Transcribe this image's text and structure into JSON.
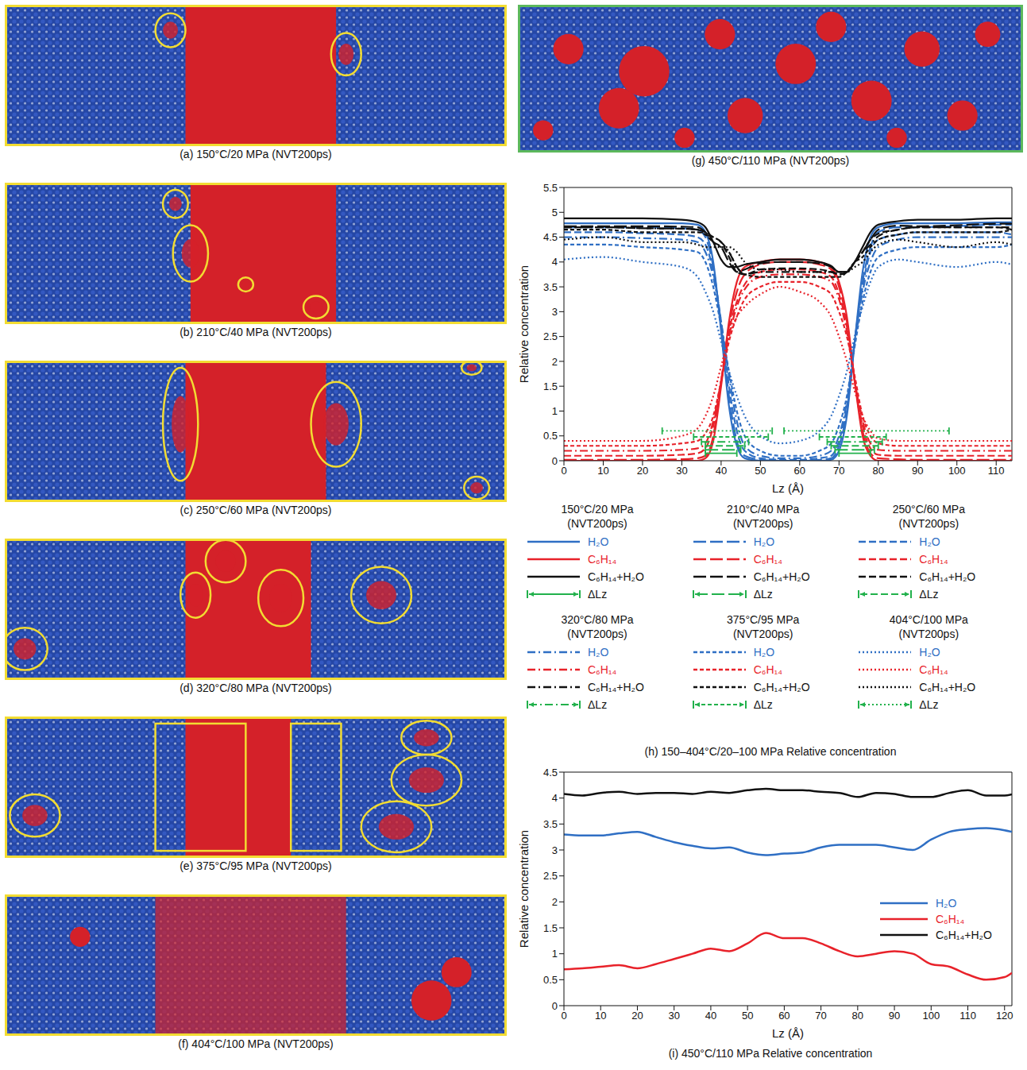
{
  "snapshots": [
    {
      "caption": "(a) 150°C/20 MPa (NVT200ps)"
    },
    {
      "caption": "(b) 210°C/40 MPa (NVT200ps)"
    },
    {
      "caption": "(c) 250°C/60 MPa (NVT200ps)"
    },
    {
      "caption": "(d) 320°C/80 MPa (NVT200ps)"
    },
    {
      "caption": "(e) 375°C/95 MPa (NVT200ps)"
    },
    {
      "caption": "(f) 404°C/100 MPa (NVT200ps)"
    },
    {
      "caption": "(g) 450°C/110 MPa (NVT200ps)"
    }
  ],
  "chart_data": [
    {
      "type": "line",
      "caption": "(h) 150–404°C/20–100 MPa Relative concentration",
      "x_label": "Lz (Å)",
      "y_label": "Relative concentration",
      "legend": "below",
      "xlim": [
        0,
        114
      ],
      "xticks": [
        0,
        10,
        20,
        30,
        40,
        50,
        60,
        70,
        80,
        90,
        100,
        110
      ],
      "ylim": [
        0,
        5.5
      ],
      "yticks": [
        0,
        0.5,
        1,
        1.5,
        2,
        2.5,
        3,
        3.5,
        4,
        4.5,
        5,
        5.5
      ],
      "x": [
        0,
        10,
        20,
        30,
        34,
        36,
        38,
        40,
        42,
        44,
        46,
        50,
        55,
        60,
        65,
        68,
        70,
        72,
        74,
        76,
        78,
        80,
        85,
        90,
        100,
        110,
        114
      ],
      "groups": [
        {
          "name": "150°C/20 MPa",
          "subtitle": "(NVT200ps)",
          "line_style": "solid",
          "series": [
            {
              "name": "H₂O",
              "color": "#2f6fc4",
              "values": [
                4.78,
                4.78,
                4.78,
                4.78,
                4.75,
                4.6,
                4.0,
                2.6,
                1.1,
                0.3,
                0.05,
                0,
                0,
                0,
                0,
                0.02,
                0.2,
                0.9,
                2.4,
                3.8,
                4.5,
                4.7,
                4.78,
                4.78,
                4.78,
                4.8,
                4.8
              ]
            },
            {
              "name": "C₆H₁₄",
              "color": "#e8222a",
              "values": [
                0,
                0,
                0,
                0,
                0,
                0.05,
                0.4,
                1.5,
                2.8,
                3.6,
                3.9,
                4.0,
                4.05,
                4.05,
                4.0,
                3.9,
                3.6,
                2.9,
                1.6,
                0.5,
                0.1,
                0,
                0,
                0,
                0,
                0,
                0
              ]
            },
            {
              "name": "C₆H₁₄+H₂O",
              "color": "#111111",
              "values": [
                4.88,
                4.88,
                4.88,
                4.85,
                4.8,
                4.7,
                4.4,
                4.05,
                3.9,
                3.9,
                3.95,
                4.0,
                4.05,
                4.05,
                4.0,
                3.92,
                3.8,
                3.8,
                4.0,
                4.3,
                4.6,
                4.75,
                4.82,
                4.85,
                4.85,
                4.88,
                4.88
              ]
            }
          ],
          "delta_lz": {
            "name": "ΔLz",
            "color": "#22b14c",
            "y": 0.15,
            "ranges": [
              [
                36,
                44
              ],
              [
                70,
                78
              ]
            ]
          }
        },
        {
          "name": "210°C/40 MPa",
          "subtitle": "(NVT200ps)",
          "line_style": "long_dash",
          "series": [
            {
              "name": "H₂O",
              "color": "#2f6fc4",
              "values": [
                4.7,
                4.7,
                4.7,
                4.68,
                4.65,
                4.5,
                3.9,
                2.7,
                1.3,
                0.4,
                0.1,
                0.02,
                0,
                0,
                0.02,
                0.05,
                0.3,
                1.0,
                2.4,
                3.6,
                4.3,
                4.6,
                4.7,
                4.7,
                4.72,
                4.75,
                4.75
              ]
            },
            {
              "name": "C₆H₁₄",
              "color": "#e8222a",
              "values": [
                0.02,
                0.02,
                0.02,
                0.03,
                0.05,
                0.1,
                0.5,
                1.6,
                2.7,
                3.4,
                3.75,
                3.95,
                4.0,
                4.0,
                3.95,
                3.85,
                3.5,
                2.8,
                1.6,
                0.6,
                0.15,
                0.05,
                0.03,
                0.02,
                0.02,
                0.02,
                0.02
              ]
            },
            {
              "name": "C₆H₁₄+H₂O",
              "color": "#111111",
              "values": [
                4.72,
                4.72,
                4.72,
                4.71,
                4.7,
                4.6,
                4.4,
                4.3,
                4.0,
                3.8,
                3.85,
                3.97,
                4.0,
                4.0,
                3.97,
                3.9,
                3.8,
                3.8,
                4.0,
                4.2,
                4.45,
                4.65,
                4.73,
                4.72,
                4.74,
                4.77,
                4.77
              ]
            }
          ],
          "delta_lz": {
            "name": "ΔLz",
            "color": "#22b14c",
            "y": 0.22,
            "ranges": [
              [
                36,
                45
              ],
              [
                69,
                79
              ]
            ]
          }
        },
        {
          "name": "250°C/60 MPa",
          "subtitle": "(NVT200ps)",
          "line_style": "dashed",
          "series": [
            {
              "name": "H₂O",
              "color": "#2f6fc4",
              "values": [
                4.6,
                4.6,
                4.58,
                4.55,
                4.5,
                4.35,
                3.8,
                2.8,
                1.5,
                0.6,
                0.2,
                0.05,
                0.02,
                0.02,
                0.05,
                0.1,
                0.4,
                1.1,
                2.4,
                3.5,
                4.2,
                4.45,
                4.55,
                4.6,
                4.6,
                4.6,
                4.55
              ]
            },
            {
              "name": "C₆H₁₄",
              "color": "#e8222a",
              "values": [
                0.1,
                0.1,
                0.1,
                0.12,
                0.15,
                0.25,
                0.7,
                1.6,
                2.6,
                3.2,
                3.55,
                3.8,
                3.85,
                3.85,
                3.8,
                3.7,
                3.35,
                2.7,
                1.6,
                0.7,
                0.25,
                0.12,
                0.1,
                0.1,
                0.1,
                0.1,
                0.1
              ]
            },
            {
              "name": "C₆H₁₄+H₂O",
              "color": "#111111",
              "values": [
                4.7,
                4.7,
                4.68,
                4.67,
                4.65,
                4.6,
                4.5,
                4.4,
                4.1,
                3.8,
                3.75,
                3.85,
                3.87,
                3.87,
                3.85,
                3.8,
                3.75,
                3.8,
                4.0,
                4.2,
                4.45,
                4.57,
                4.65,
                4.7,
                4.7,
                4.7,
                4.65
              ]
            }
          ],
          "delta_lz": {
            "name": "ΔLz",
            "color": "#22b14c",
            "y": 0.3,
            "ranges": [
              [
                36,
                46
              ],
              [
                68,
                80
              ]
            ]
          }
        },
        {
          "name": "320°C/80 MPa",
          "subtitle": "(NVT200ps)",
          "line_style": "dash_dot",
          "series": [
            {
              "name": "H₂O",
              "color": "#2f6fc4",
              "values": [
                4.5,
                4.5,
                4.48,
                4.45,
                4.4,
                4.2,
                3.7,
                2.8,
                1.7,
                0.8,
                0.3,
                0.1,
                0.05,
                0.05,
                0.1,
                0.2,
                0.5,
                1.2,
                2.4,
                3.4,
                4.0,
                4.3,
                4.45,
                4.5,
                4.5,
                4.5,
                4.5
              ]
            },
            {
              "name": "C₆H₁₄",
              "color": "#e8222a",
              "values": [
                0.2,
                0.2,
                0.2,
                0.22,
                0.25,
                0.35,
                0.8,
                1.6,
                2.5,
                3.1,
                3.45,
                3.7,
                3.75,
                3.75,
                3.7,
                3.6,
                3.25,
                2.6,
                1.6,
                0.8,
                0.35,
                0.22,
                0.2,
                0.2,
                0.2,
                0.2,
                0.2
              ]
            },
            {
              "name": "C₆H₁₄+H₂O",
              "color": "#111111",
              "values": [
                4.7,
                4.7,
                4.68,
                4.67,
                4.65,
                4.55,
                4.5,
                4.4,
                4.2,
                3.9,
                3.75,
                3.8,
                3.8,
                3.8,
                3.8,
                3.8,
                3.75,
                3.8,
                4.0,
                4.2,
                4.35,
                4.52,
                4.65,
                4.7,
                4.7,
                4.7,
                4.7
              ]
            }
          ],
          "delta_lz": {
            "name": "ΔLz",
            "color": "#22b14c",
            "y": 0.38,
            "ranges": [
              [
                35,
                47
              ],
              [
                67,
                81
              ]
            ]
          }
        },
        {
          "name": "375°C/95 MPa",
          "subtitle": "(NVT200ps)",
          "line_style": "short_dash",
          "series": [
            {
              "name": "H₂O",
              "color": "#2f6fc4",
              "values": [
                4.35,
                4.35,
                4.3,
                4.25,
                4.2,
                4.0,
                3.5,
                2.7,
                1.8,
                1.0,
                0.5,
                0.2,
                0.1,
                0.1,
                0.2,
                0.35,
                0.7,
                1.3,
                2.3,
                3.2,
                3.8,
                4.1,
                4.25,
                4.3,
                4.3,
                4.3,
                4.35
              ]
            },
            {
              "name": "C₆H₁₄",
              "color": "#e8222a",
              "values": [
                0.3,
                0.3,
                0.3,
                0.35,
                0.4,
                0.55,
                0.9,
                1.6,
                2.4,
                2.9,
                3.25,
                3.5,
                3.6,
                3.6,
                3.5,
                3.35,
                3.0,
                2.5,
                1.7,
                0.9,
                0.5,
                0.35,
                0.3,
                0.3,
                0.3,
                0.3,
                0.3
              ]
            },
            {
              "name": "C₆H₁₄+H₂O",
              "color": "#111111",
              "values": [
                4.65,
                4.65,
                4.6,
                4.6,
                4.6,
                4.55,
                4.4,
                4.3,
                4.2,
                3.9,
                3.75,
                3.7,
                3.7,
                3.7,
                3.7,
                3.7,
                3.7,
                3.8,
                4.0,
                4.1,
                4.3,
                4.45,
                4.55,
                4.6,
                4.6,
                4.6,
                4.65
              ]
            }
          ],
          "delta_lz": {
            "name": "ΔLz",
            "color": "#22b14c",
            "y": 0.48,
            "ranges": [
              [
                33,
                52
              ],
              [
                65,
                82
              ]
            ]
          }
        },
        {
          "name": "404°C/100 MPa",
          "subtitle": "(NVT200ps)",
          "line_style": "dotted",
          "series": [
            {
              "name": "H₂O",
              "color": "#2f6fc4",
              "values": [
                4.05,
                4.1,
                4.0,
                3.9,
                3.7,
                3.4,
                3.0,
                2.4,
                1.8,
                1.3,
                0.9,
                0.5,
                0.35,
                0.4,
                0.6,
                0.9,
                1.3,
                1.8,
                2.5,
                3.1,
                3.6,
                3.9,
                4.05,
                4.0,
                3.9,
                4.0,
                3.95
              ]
            },
            {
              "name": "C₆H₁₄",
              "color": "#e8222a",
              "values": [
                0.4,
                0.4,
                0.4,
                0.5,
                0.65,
                0.9,
                1.3,
                1.9,
                2.5,
                2.9,
                3.1,
                3.35,
                3.5,
                3.4,
                3.2,
                2.9,
                2.5,
                2.0,
                1.4,
                0.9,
                0.6,
                0.45,
                0.4,
                0.4,
                0.4,
                0.4,
                0.4
              ]
            },
            {
              "name": "C₆H₁₄+H₂O",
              "color": "#111111",
              "values": [
                4.45,
                4.5,
                4.4,
                4.4,
                4.35,
                4.3,
                4.3,
                4.3,
                4.3,
                4.2,
                4.0,
                3.85,
                3.85,
                3.8,
                3.8,
                3.8,
                3.8,
                3.8,
                3.9,
                4.0,
                4.2,
                4.35,
                4.45,
                4.4,
                4.3,
                4.4,
                4.35
              ]
            }
          ],
          "delta_lz": {
            "name": "ΔLz",
            "color": "#22b14c",
            "y": 0.6,
            "ranges": [
              [
                25,
                53
              ],
              [
                56,
                98
              ]
            ]
          }
        }
      ]
    },
    {
      "type": "line",
      "caption": "(i) 450°C/110 MPa Relative concentration",
      "x_label": "Lz (Å)",
      "y_label": "Relative concentration",
      "legend": "lower right",
      "xlim": [
        0,
        122
      ],
      "xticks": [
        0,
        10,
        20,
        30,
        40,
        50,
        60,
        70,
        80,
        90,
        100,
        110,
        120
      ],
      "ylim": [
        0,
        4.5
      ],
      "yticks": [
        0,
        0.5,
        1,
        1.5,
        2,
        2.5,
        3,
        3.5,
        4,
        4.5
      ],
      "x": [
        0,
        5,
        10,
        15,
        20,
        25,
        30,
        35,
        40,
        45,
        50,
        55,
        60,
        65,
        70,
        75,
        80,
        85,
        90,
        95,
        100,
        105,
        110,
        115,
        120,
        122
      ],
      "series": [
        {
          "name": "H₂O",
          "color": "#2f6fc4",
          "values": [
            3.3,
            3.28,
            3.28,
            3.32,
            3.35,
            3.25,
            3.15,
            3.08,
            3.03,
            3.05,
            2.95,
            2.9,
            2.93,
            2.95,
            3.05,
            3.1,
            3.1,
            3.1,
            3.05,
            3.0,
            3.2,
            3.35,
            3.4,
            3.42,
            3.38,
            3.35
          ]
        },
        {
          "name": "C₆H₁₄",
          "color": "#e8222a",
          "values": [
            0.7,
            0.72,
            0.75,
            0.78,
            0.72,
            0.8,
            0.9,
            1.0,
            1.1,
            1.05,
            1.2,
            1.4,
            1.3,
            1.3,
            1.2,
            1.05,
            0.95,
            1.0,
            1.05,
            1.0,
            0.8,
            0.75,
            0.6,
            0.5,
            0.55,
            0.63
          ]
        },
        {
          "name": "C₆H₁₄+H₂O",
          "color": "#111111",
          "values": [
            4.08,
            4.05,
            4.1,
            4.12,
            4.08,
            4.1,
            4.1,
            4.08,
            4.12,
            4.1,
            4.15,
            4.18,
            4.15,
            4.15,
            4.12,
            4.1,
            4.02,
            4.1,
            4.08,
            4.02,
            4.02,
            4.1,
            4.15,
            4.05,
            4.05,
            4.07
          ]
        }
      ]
    }
  ]
}
